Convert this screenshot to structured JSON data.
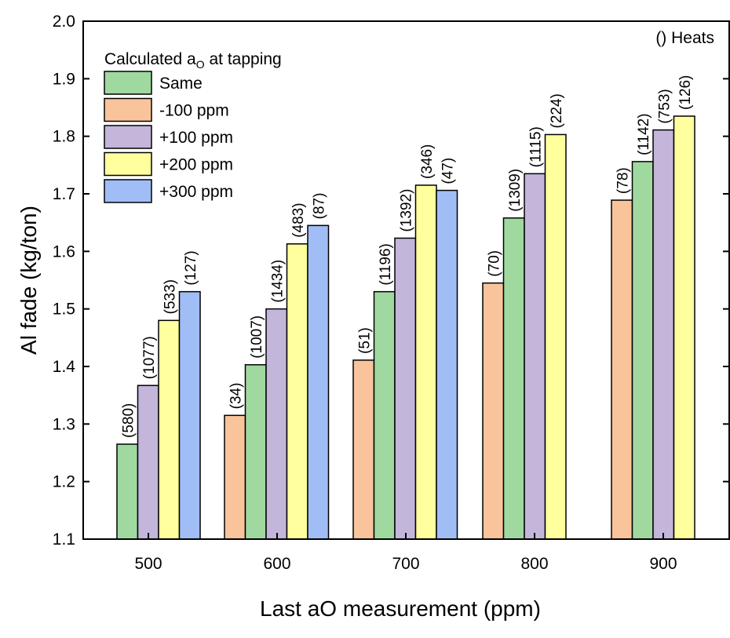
{
  "chart_data": {
    "type": "bar",
    "title": "",
    "xlabel": "Last aO measurement (ppm)",
    "ylabel": "Al fade (kg/ton)",
    "ylim": [
      1.1,
      2.0
    ],
    "yticks": [
      "1.1",
      "1.2",
      "1.3",
      "1.4",
      "1.5",
      "1.6",
      "1.7",
      "1.8",
      "1.9",
      "2.0"
    ],
    "categories": [
      "500",
      "600",
      "700",
      "800",
      "900"
    ],
    "legend_title_main": "Calculated a",
    "legend_title_sub": "O",
    "legend_title_rest": " at tapping",
    "legend_location": "top-left",
    "note": "() Heats",
    "colors": {
      "Same": "#9fd9a0",
      "-100 ppm": "#f9c49b",
      "+100 ppm": "#c4b5da",
      "+200 ppm": "#ffff9e",
      "+300 ppm": "#a0bdf5"
    },
    "legend_order": [
      "Same",
      "-100 ppm",
      "+100 ppm",
      "+200 ppm",
      "+300 ppm"
    ],
    "groups": [
      {
        "category": "500",
        "bars": [
          {
            "series": "Same",
            "value": 1.265,
            "label": "(580)"
          },
          {
            "series": "+100 ppm",
            "value": 1.367,
            "label": "(1077)"
          },
          {
            "series": "+200 ppm",
            "value": 1.48,
            "label": "(533)"
          },
          {
            "series": "+300 ppm",
            "value": 1.53,
            "label": "(127)"
          }
        ]
      },
      {
        "category": "600",
        "bars": [
          {
            "series": "-100 ppm",
            "value": 1.315,
            "label": "(34)"
          },
          {
            "series": "Same",
            "value": 1.403,
            "label": "(1007)"
          },
          {
            "series": "+100 ppm",
            "value": 1.5,
            "label": "(1434)"
          },
          {
            "series": "+200 ppm",
            "value": 1.613,
            "label": "(483)"
          },
          {
            "series": "+300 ppm",
            "value": 1.645,
            "label": "(87)"
          }
        ]
      },
      {
        "category": "700",
        "bars": [
          {
            "series": "-100 ppm",
            "value": 1.411,
            "label": "(51)"
          },
          {
            "series": "Same",
            "value": 1.53,
            "label": "(1196)"
          },
          {
            "series": "+100 ppm",
            "value": 1.623,
            "label": "(1392)"
          },
          {
            "series": "+200 ppm",
            "value": 1.715,
            "label": "(346)"
          },
          {
            "series": "+300 ppm",
            "value": 1.706,
            "label": "(47)"
          }
        ]
      },
      {
        "category": "800",
        "bars": [
          {
            "series": "-100 ppm",
            "value": 1.545,
            "label": "(70)"
          },
          {
            "series": "Same",
            "value": 1.658,
            "label": "(1309)"
          },
          {
            "series": "+100 ppm",
            "value": 1.735,
            "label": "(1115)"
          },
          {
            "series": "+200 ppm",
            "value": 1.803,
            "label": "(224)"
          }
        ]
      },
      {
        "category": "900",
        "bars": [
          {
            "series": "-100 ppm",
            "value": 1.689,
            "label": "(78)"
          },
          {
            "series": "Same",
            "value": 1.756,
            "label": "(1142)"
          },
          {
            "series": "+100 ppm",
            "value": 1.811,
            "label": "(753)"
          },
          {
            "series": "+200 ppm",
            "value": 1.835,
            "label": "(126)"
          }
        ]
      }
    ]
  }
}
